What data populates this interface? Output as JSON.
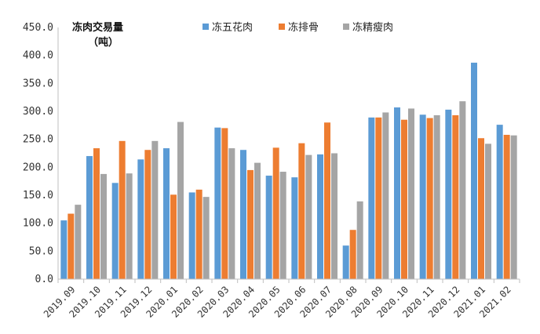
{
  "chart_data": {
    "type": "bar",
    "ylabel_line1": "冻肉交易量",
    "ylabel_line2": "（吨）",
    "ylim": [
      0,
      450
    ],
    "yticks": [
      "0.0",
      "50.0",
      "100.0",
      "150.0",
      "200.0",
      "250.0",
      "300.0",
      "350.0",
      "400.0",
      "450.0"
    ],
    "ytick_values": [
      0,
      50,
      100,
      150,
      200,
      250,
      300,
      350,
      400,
      450
    ],
    "grid": false,
    "legend_position": "top",
    "categories": [
      "2019.09",
      "2019.10",
      "2019.11",
      "2019.12",
      "2020.01",
      "2020.02",
      "2020.03",
      "2020.04",
      "2020.05",
      "2020.06",
      "2020.07",
      "2020.08",
      "2020.09",
      "2020.10",
      "2020.11",
      "2020.12",
      "2021.01",
      "2021.02"
    ],
    "series": [
      {
        "name": "冻五花肉",
        "color": "#5b9bd5",
        "values": [
          105,
          220,
          172,
          214,
          234,
          155,
          271,
          231,
          185,
          182,
          223,
          60,
          289,
          307,
          294,
          303,
          387,
          276
        ]
      },
      {
        "name": "冻排骨",
        "color": "#ed7d31",
        "values": [
          117,
          234,
          247,
          231,
          151,
          160,
          270,
          195,
          235,
          243,
          280,
          88,
          289,
          285,
          288,
          293,
          252,
          258
        ]
      },
      {
        "name": "冻精瘦肉",
        "color": "#a5a5a5",
        "values": [
          133,
          188,
          189,
          247,
          281,
          147,
          234,
          208,
          192,
          222,
          225,
          139,
          298,
          305,
          293,
          318,
          242,
          257
        ]
      }
    ]
  }
}
